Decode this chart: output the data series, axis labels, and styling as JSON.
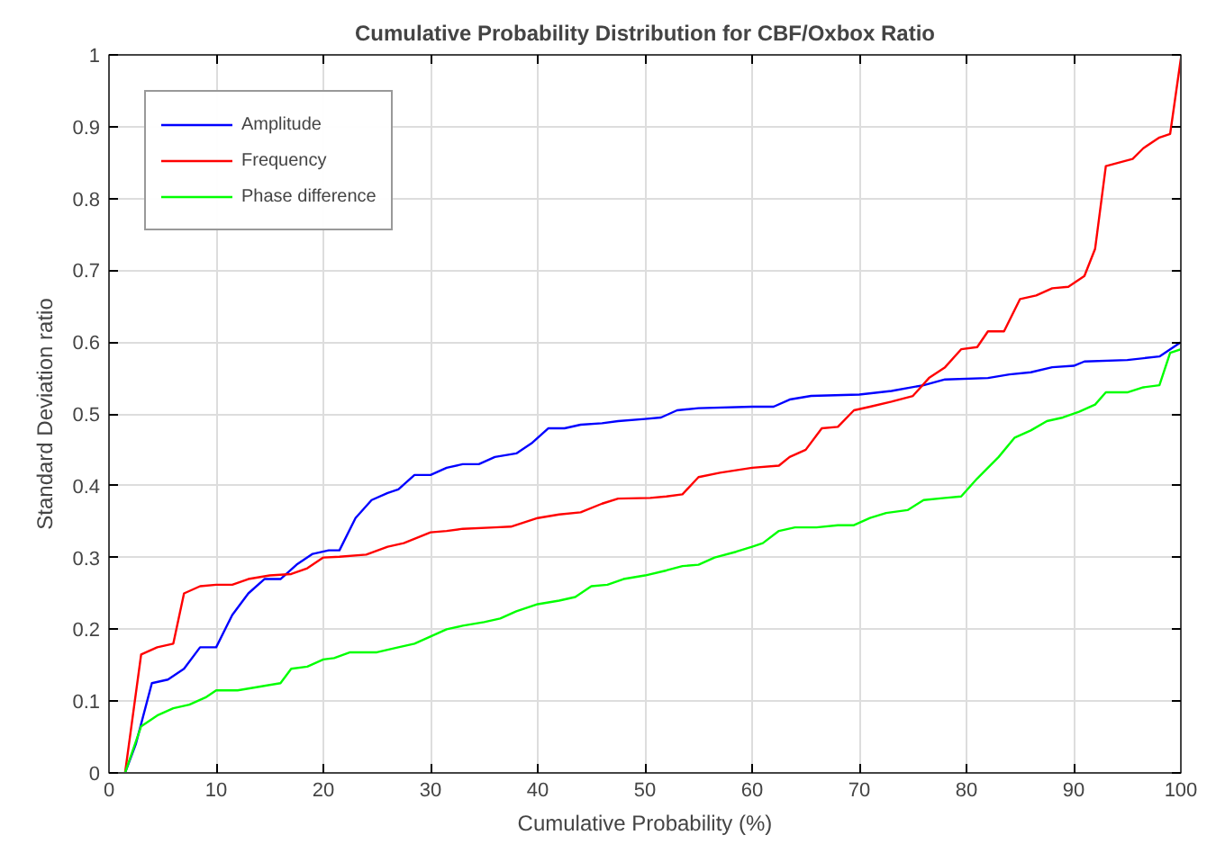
{
  "chart_data": {
    "type": "line",
    "title": "Cumulative Probability Distribution for CBF/Oxbox Ratio",
    "xlabel": "Cumulative Probability (%)",
    "ylabel": "Standard Deviation ratio",
    "xlim": [
      0,
      100
    ],
    "ylim": [
      0,
      1
    ],
    "xticks": [
      0,
      10,
      20,
      30,
      40,
      50,
      60,
      70,
      80,
      90,
      100
    ],
    "yticks": [
      0,
      0.1,
      0.2,
      0.3,
      0.4,
      0.5,
      0.6,
      0.7,
      0.8,
      0.9,
      1
    ],
    "grid": true,
    "legend": "top left",
    "line_style": "solid",
    "marker": "none",
    "series": [
      {
        "name": "Amplitude",
        "color": "#0000ff",
        "x": [
          1.5,
          2.5,
          4,
          5.5,
          7,
          8.5,
          10,
          11.5,
          13,
          14.5,
          16,
          17.5,
          19,
          20.5,
          21.5,
          23,
          24.5,
          26,
          27,
          28.5,
          30,
          31.5,
          33,
          34.5,
          36,
          38,
          39.5,
          41,
          42.5,
          44,
          46,
          47.5,
          50,
          51.5,
          53,
          55,
          60,
          62,
          63.5,
          65.5,
          70,
          73,
          76,
          78,
          82,
          84,
          86,
          88,
          90,
          91,
          95,
          98,
          100
        ],
        "values": [
          0,
          0.04,
          0.125,
          0.13,
          0.145,
          0.175,
          0.175,
          0.22,
          0.25,
          0.27,
          0.27,
          0.29,
          0.305,
          0.31,
          0.31,
          0.355,
          0.38,
          0.39,
          0.395,
          0.415,
          0.415,
          0.425,
          0.43,
          0.43,
          0.44,
          0.445,
          0.46,
          0.48,
          0.48,
          0.485,
          0.487,
          0.49,
          0.493,
          0.495,
          0.505,
          0.508,
          0.51,
          0.51,
          0.52,
          0.525,
          0.527,
          0.532,
          0.54,
          0.548,
          0.55,
          0.555,
          0.558,
          0.565,
          0.567,
          0.573,
          0.575,
          0.58,
          0.6
        ]
      },
      {
        "name": "Frequency",
        "color": "#ff0000",
        "x": [
          1.5,
          3,
          4.5,
          6,
          7,
          8.5,
          10,
          11.5,
          13,
          15,
          17,
          18.5,
          20,
          21.5,
          24,
          26,
          27.5,
          30,
          31.5,
          33,
          36,
          37.5,
          40,
          42,
          44,
          46,
          47.5,
          50.5,
          52,
          53.5,
          55,
          57,
          60,
          62.5,
          63.5,
          65,
          66.5,
          68,
          69.5,
          71,
          73,
          75,
          76.5,
          78,
          79.5,
          81,
          82,
          83.5,
          85,
          86.5,
          88,
          89.5,
          91,
          92,
          93,
          95.5,
          96.5,
          98,
          99,
          100
        ],
        "values": [
          0,
          0.165,
          0.175,
          0.18,
          0.25,
          0.26,
          0.262,
          0.262,
          0.27,
          0.275,
          0.277,
          0.285,
          0.3,
          0.301,
          0.304,
          0.315,
          0.32,
          0.335,
          0.337,
          0.34,
          0.342,
          0.343,
          0.355,
          0.36,
          0.363,
          0.375,
          0.382,
          0.383,
          0.385,
          0.388,
          0.412,
          0.418,
          0.425,
          0.428,
          0.44,
          0.45,
          0.48,
          0.482,
          0.505,
          0.51,
          0.517,
          0.525,
          0.55,
          0.565,
          0.59,
          0.593,
          0.615,
          0.615,
          0.66,
          0.665,
          0.675,
          0.677,
          0.692,
          0.73,
          0.845,
          0.855,
          0.87,
          0.885,
          0.89,
          0.995
        ]
      },
      {
        "name": "Phase difference",
        "color": "#00ff00",
        "x": [
          1.5,
          3,
          4.5,
          6,
          7.5,
          9,
          10,
          12,
          14,
          16,
          17,
          18.5,
          20,
          21,
          22.5,
          25,
          27,
          28.5,
          30,
          31.5,
          33,
          35,
          36.5,
          38,
          40,
          42,
          43.5,
          45,
          46.5,
          48,
          50,
          52,
          53.5,
          55,
          56.5,
          58.5,
          60,
          61,
          62.5,
          64,
          66,
          68,
          69.5,
          71,
          72.5,
          74.5,
          76,
          78,
          79.5,
          81,
          83,
          84.5,
          86,
          87.5,
          89,
          90.5,
          92,
          93,
          95,
          96.5,
          98,
          99,
          100
        ],
        "values": [
          0,
          0.065,
          0.08,
          0.09,
          0.095,
          0.105,
          0.115,
          0.115,
          0.12,
          0.125,
          0.145,
          0.148,
          0.158,
          0.16,
          0.168,
          0.168,
          0.175,
          0.18,
          0.19,
          0.2,
          0.205,
          0.21,
          0.215,
          0.225,
          0.235,
          0.24,
          0.245,
          0.26,
          0.262,
          0.27,
          0.275,
          0.282,
          0.288,
          0.29,
          0.3,
          0.308,
          0.315,
          0.32,
          0.337,
          0.342,
          0.342,
          0.345,
          0.345,
          0.355,
          0.362,
          0.366,
          0.38,
          0.383,
          0.385,
          0.41,
          0.44,
          0.467,
          0.477,
          0.49,
          0.495,
          0.503,
          0.513,
          0.53,
          0.53,
          0.537,
          0.54,
          0.585,
          0.59
        ]
      }
    ]
  }
}
